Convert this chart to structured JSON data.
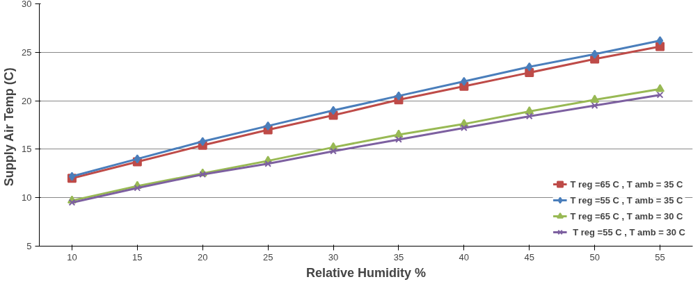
{
  "chart_data": {
    "type": "line",
    "xlabel": "Relative Humidity %",
    "ylabel": "Supply Air Temp  (C)",
    "categories": [
      "10",
      "15",
      "20",
      "25",
      "30",
      "35",
      "40",
      "45",
      "50",
      "55"
    ],
    "series": [
      {
        "name": "T reg =65 C , T amb = 35 C",
        "color": "#be4b48",
        "marker": "square",
        "values": [
          12.0,
          13.7,
          15.4,
          17.0,
          18.5,
          20.1,
          21.5,
          22.9,
          24.3,
          25.6
        ]
      },
      {
        "name": "T reg =55 C , T amb = 35 C",
        "color": "#4a7ebb",
        "marker": "diamond",
        "values": [
          12.2,
          14.0,
          15.8,
          17.4,
          19.0,
          20.5,
          22.0,
          23.5,
          24.8,
          26.2
        ]
      },
      {
        "name": "T reg =65 C , T amb = 30 C",
        "color": "#98b954",
        "marker": "triangle",
        "values": [
          9.7,
          11.2,
          12.5,
          13.8,
          15.2,
          16.5,
          17.6,
          18.9,
          20.1,
          21.2
        ]
      },
      {
        "name": " T reg =55 C , T amb = 30 C",
        "color": "#7d60a0",
        "marker": "x",
        "values": [
          9.5,
          11.0,
          12.4,
          13.5,
          14.8,
          16.0,
          17.2,
          18.4,
          19.5,
          20.6
        ]
      }
    ],
    "ylim": [
      5,
      30
    ],
    "yticks": [
      5,
      10,
      15,
      20,
      25,
      30
    ],
    "grid": "y",
    "legend": "bottom right",
    "line_style": "solid"
  }
}
